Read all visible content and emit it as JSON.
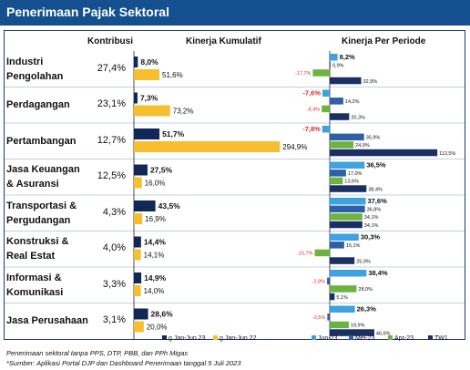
{
  "header": {
    "title": "Penerimaan Pajak Sektoral"
  },
  "columns": {
    "kontribusi": "Kontribusi",
    "kumulatif": "Kinerja Kumulatif",
    "periode": "Kinerja Per Periode"
  },
  "sectors": [
    {
      "line1": "Industri",
      "line2": "Pengolahan",
      "kontribusi": "27,4%"
    },
    {
      "line1": "Perdagangan",
      "line2": "",
      "kontribusi": "23,1%"
    },
    {
      "line1": "Pertambangan",
      "line2": "",
      "kontribusi": "12,7%"
    },
    {
      "line1": "Jasa Keuangan",
      "line2": "& Asuransi",
      "kontribusi": "12,5%"
    },
    {
      "line1": "Transportasi &",
      "line2": "Pergudangan",
      "kontribusi": "4,3%"
    },
    {
      "line1": "Konstruksi &",
      "line2": "Real Estat",
      "kontribusi": "4,0%"
    },
    {
      "line1": "Informasi &",
      "line2": "Komunikasi",
      "kontribusi": "3,3%"
    },
    {
      "line1": "Jasa Perusahaan",
      "line2": "",
      "kontribusi": "3,1%"
    }
  ],
  "notes": {
    "line1": "Penerimaan sektoral tanpa PPS, DTP, PBB, dan PPh Migas",
    "line2": "*Sumber: Aplikasi Portal DJP dan Dashboard Penerimaan tanggal 5 Juli 2023"
  },
  "colors": {
    "title_bar": "#14508f",
    "jun23": "#3ea2e0",
    "mei23": "#2e5fa8",
    "apr23": "#6cb33f",
    "tw1": "#1b2f63",
    "cum23": "#11275a",
    "cum22": "#f7bf2f",
    "negative_label": "#d0302a"
  },
  "chart_data": [
    {
      "type": "bar",
      "categories": [
        "Industri Pengolahan",
        "Perdagangan",
        "Pertambangan",
        "Jasa Keuangan & Asuransi",
        "Transportasi & Pergudangan",
        "Konstruksi & Real Estat",
        "Informasi & Komunikasi",
        "Jasa Perusahaan"
      ],
      "series": [
        {
          "name": "g Jan-Jun 23",
          "values": [
            8.0,
            7.3,
            51.7,
            27.5,
            43.5,
            14.4,
            14.9,
            28.6
          ],
          "labels": [
            "8,0%",
            "7,3%",
            "51,7%",
            "27,5%",
            "43,5%",
            "14,4%",
            "14,9%",
            "28,6%"
          ]
        },
        {
          "name": "g Jan-Jun 22",
          "values": [
            51.6,
            73.2,
            294.9,
            16.0,
            16.9,
            14.1,
            14.0,
            20.0
          ],
          "labels": [
            "51,6%",
            "73,2%",
            "294,9%",
            "16,0%",
            "16,9%",
            "14,1%",
            "14,0%",
            "20,0%"
          ]
        }
      ]
    },
    {
      "type": "bar",
      "categories": [
        "Industri Pengolahan",
        "Perdagangan",
        "Pertambangan",
        "Jasa Keuangan & Asuransi",
        "Transportasi & Pergudangan",
        "Konstruksi & Real Estat",
        "Informasi & Komunikasi",
        "Jasa Perusahaan"
      ],
      "series": [
        {
          "name": "Jun-23",
          "values": [
            8.2,
            -7.6,
            -7.8,
            36.5,
            37.6,
            30.3,
            38.4,
            26.3
          ],
          "labels": [
            "8,2%",
            "-7,6%",
            "-7,8%",
            "36,5%",
            "37,6%",
            "30,3%",
            "38,4%",
            "26,3%"
          ]
        },
        {
          "name": "Mei-23",
          "values": [
            0.9,
            14.2,
            35.9,
            17.0,
            36.8,
            15.1,
            -2.8,
            -2.5
          ],
          "labels": [
            "0,9%",
            "14,2%",
            "35,9%",
            "17,0%",
            "36,8%",
            "15,1%",
            "-2,8%",
            "-2,5%"
          ]
        },
        {
          "name": "Apr-23",
          "values": [
            -17.7,
            -8.4,
            24.9,
            13.6,
            34.1,
            -15.7,
            28.0,
            19.9
          ],
          "labels": [
            "-17,7%",
            "-8,4%",
            "24,9%",
            "13,6%",
            "34,1%",
            "-15,7%",
            "28,0%",
            "19,9%"
          ]
        },
        {
          "name": "TW1",
          "values": [
            32.9,
            20.3,
            112.5,
            38.4,
            34.1,
            25.9,
            5.1,
            46.6
          ],
          "labels": [
            "32,9%",
            "20,3%",
            "112,5%",
            "38,4%",
            "34,1%",
            "25,9%",
            "5,1%",
            "46,6%"
          ]
        }
      ]
    }
  ]
}
